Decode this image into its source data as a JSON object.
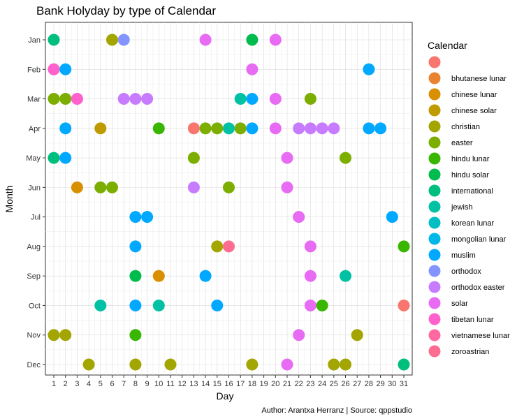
{
  "chart_data": {
    "type": "scatter",
    "title": "Bank Holyday by type of Calendar",
    "xlabel": "Day",
    "ylabel": "Month",
    "caption": "Author: Arantxa Herranz | Source: qppstudio",
    "x_ticks": [
      1,
      2,
      3,
      4,
      5,
      6,
      7,
      8,
      9,
      10,
      11,
      12,
      13,
      14,
      15,
      16,
      17,
      18,
      19,
      20,
      21,
      22,
      23,
      24,
      25,
      26,
      27,
      28,
      29,
      30,
      31
    ],
    "months": [
      "Jan",
      "Feb",
      "Mar",
      "Apr",
      "May",
      "Jun",
      "Jul",
      "Aug",
      "Sep",
      "Oct",
      "Nov",
      "Dec"
    ],
    "grid": true,
    "legend": {
      "title": "Calendar",
      "placement": "right",
      "entries": [
        {
          "name": "",
          "color": "#F8766D"
        },
        {
          "name": "bhutanese lunar",
          "color": "#EA8331"
        },
        {
          "name": "chinese lunar",
          "color": "#D89000"
        },
        {
          "name": "chinese solar",
          "color": "#C09B00"
        },
        {
          "name": "christian",
          "color": "#A3A500"
        },
        {
          "name": "easter",
          "color": "#7CAE00"
        },
        {
          "name": "hindu lunar",
          "color": "#39B600"
        },
        {
          "name": "hindu solar",
          "color": "#00BB4E"
        },
        {
          "name": "international",
          "color": "#00BF7D"
        },
        {
          "name": "jewish",
          "color": "#00C1A3"
        },
        {
          "name": "korean lunar",
          "color": "#00BFC4"
        },
        {
          "name": "mongolian lunar",
          "color": "#00B8E7"
        },
        {
          "name": "muslim",
          "color": "#00A9FF"
        },
        {
          "name": "orthodox",
          "color": "#8494FF"
        },
        {
          "name": "orthodox easter",
          "color": "#C77CFF"
        },
        {
          "name": "solar",
          "color": "#E76BF3"
        },
        {
          "name": "tibetan lunar",
          "color": "#FF61CC"
        },
        {
          "name": "vietnamese lunar",
          "color": "#FF68A1"
        },
        {
          "name": "zoroastrian",
          "color": "#FF6C91"
        }
      ]
    },
    "points": [
      {
        "day": 1,
        "month": "Jan",
        "calendar": "international"
      },
      {
        "day": 6,
        "month": "Jan",
        "calendar": "christian"
      },
      {
        "day": 7,
        "month": "Jan",
        "calendar": "orthodox"
      },
      {
        "day": 14,
        "month": "Jan",
        "calendar": "solar"
      },
      {
        "day": 18,
        "month": "Jan",
        "calendar": "hindu solar"
      },
      {
        "day": 20,
        "month": "Jan",
        "calendar": "solar"
      },
      {
        "day": 1,
        "month": "Feb",
        "calendar": "solar"
      },
      {
        "day": 1,
        "month": "Feb",
        "calendar": "tibetan lunar"
      },
      {
        "day": 2,
        "month": "Feb",
        "calendar": "muslim"
      },
      {
        "day": 18,
        "month": "Feb",
        "calendar": "solar"
      },
      {
        "day": 28,
        "month": "Feb",
        "calendar": "muslim"
      },
      {
        "day": 1,
        "month": "Mar",
        "calendar": "easter"
      },
      {
        "day": 2,
        "month": "Mar",
        "calendar": "easter"
      },
      {
        "day": 3,
        "month": "Mar",
        "calendar": "solar"
      },
      {
        "day": 3,
        "month": "Mar",
        "calendar": "tibetan lunar"
      },
      {
        "day": 7,
        "month": "Mar",
        "calendar": "orthodox easter"
      },
      {
        "day": 8,
        "month": "Mar",
        "calendar": "orthodox easter"
      },
      {
        "day": 9,
        "month": "Mar",
        "calendar": "orthodox easter"
      },
      {
        "day": 17,
        "month": "Mar",
        "calendar": "jewish"
      },
      {
        "day": 18,
        "month": "Mar",
        "calendar": "muslim"
      },
      {
        "day": 20,
        "month": "Mar",
        "calendar": "solar"
      },
      {
        "day": 23,
        "month": "Mar",
        "calendar": "easter"
      },
      {
        "day": 2,
        "month": "Apr",
        "calendar": "muslim"
      },
      {
        "day": 5,
        "month": "Apr",
        "calendar": "chinese solar"
      },
      {
        "day": 10,
        "month": "Apr",
        "calendar": "hindu lunar"
      },
      {
        "day": 13,
        "month": "Apr",
        "calendar": ""
      },
      {
        "day": 14,
        "month": "Apr",
        "calendar": "easter"
      },
      {
        "day": 15,
        "month": "Apr",
        "calendar": "easter"
      },
      {
        "day": 16,
        "month": "Apr",
        "calendar": "jewish"
      },
      {
        "day": 17,
        "month": "Apr",
        "calendar": "easter"
      },
      {
        "day": 18,
        "month": "Apr",
        "calendar": "muslim"
      },
      {
        "day": 20,
        "month": "Apr",
        "calendar": "solar"
      },
      {
        "day": 22,
        "month": "Apr",
        "calendar": "orthodox easter"
      },
      {
        "day": 23,
        "month": "Apr",
        "calendar": "orthodox easter"
      },
      {
        "day": 24,
        "month": "Apr",
        "calendar": "orthodox easter"
      },
      {
        "day": 25,
        "month": "Apr",
        "calendar": "orthodox easter"
      },
      {
        "day": 28,
        "month": "Apr",
        "calendar": "muslim"
      },
      {
        "day": 29,
        "month": "Apr",
        "calendar": "muslim"
      },
      {
        "day": 1,
        "month": "May",
        "calendar": "international"
      },
      {
        "day": 2,
        "month": "May",
        "calendar": "muslim"
      },
      {
        "day": 13,
        "month": "May",
        "calendar": "easter"
      },
      {
        "day": 21,
        "month": "May",
        "calendar": "solar"
      },
      {
        "day": 26,
        "month": "May",
        "calendar": "easter"
      },
      {
        "day": 3,
        "month": "Jun",
        "calendar": "chinese lunar"
      },
      {
        "day": 5,
        "month": "Jun",
        "calendar": "easter"
      },
      {
        "day": 6,
        "month": "Jun",
        "calendar": "easter"
      },
      {
        "day": 13,
        "month": "Jun",
        "calendar": "orthodox easter"
      },
      {
        "day": 16,
        "month": "Jun",
        "calendar": "easter"
      },
      {
        "day": 21,
        "month": "Jun",
        "calendar": "solar"
      },
      {
        "day": 8,
        "month": "Jul",
        "calendar": "muslim"
      },
      {
        "day": 9,
        "month": "Jul",
        "calendar": "muslim"
      },
      {
        "day": 22,
        "month": "Jul",
        "calendar": "solar"
      },
      {
        "day": 30,
        "month": "Jul",
        "calendar": "muslim"
      },
      {
        "day": 8,
        "month": "Aug",
        "calendar": "muslim"
      },
      {
        "day": 15,
        "month": "Aug",
        "calendar": "christian"
      },
      {
        "day": 16,
        "month": "Aug",
        "calendar": "zoroastrian"
      },
      {
        "day": 23,
        "month": "Aug",
        "calendar": "solar"
      },
      {
        "day": 31,
        "month": "Aug",
        "calendar": "hindu lunar"
      },
      {
        "day": 8,
        "month": "Sep",
        "calendar": "hindu solar"
      },
      {
        "day": 10,
        "month": "Sep",
        "calendar": "chinese lunar"
      },
      {
        "day": 14,
        "month": "Sep",
        "calendar": "muslim"
      },
      {
        "day": 23,
        "month": "Sep",
        "calendar": "solar"
      },
      {
        "day": 26,
        "month": "Sep",
        "calendar": "jewish"
      },
      {
        "day": 5,
        "month": "Oct",
        "calendar": "jewish"
      },
      {
        "day": 8,
        "month": "Oct",
        "calendar": "muslim"
      },
      {
        "day": 10,
        "month": "Oct",
        "calendar": "jewish"
      },
      {
        "day": 15,
        "month": "Oct",
        "calendar": "muslim"
      },
      {
        "day": 23,
        "month": "Oct",
        "calendar": "solar"
      },
      {
        "day": 24,
        "month": "Oct",
        "calendar": "hindu lunar"
      },
      {
        "day": 31,
        "month": "Oct",
        "calendar": ""
      },
      {
        "day": 1,
        "month": "Nov",
        "calendar": "christian"
      },
      {
        "day": 2,
        "month": "Nov",
        "calendar": "christian"
      },
      {
        "day": 8,
        "month": "Nov",
        "calendar": "hindu lunar"
      },
      {
        "day": 22,
        "month": "Nov",
        "calendar": "solar"
      },
      {
        "day": 27,
        "month": "Nov",
        "calendar": "christian"
      },
      {
        "day": 4,
        "month": "Dec",
        "calendar": "christian"
      },
      {
        "day": 8,
        "month": "Dec",
        "calendar": "christian"
      },
      {
        "day": 11,
        "month": "Dec",
        "calendar": "christian"
      },
      {
        "day": 18,
        "month": "Dec",
        "calendar": "christian"
      },
      {
        "day": 21,
        "month": "Dec",
        "calendar": "solar"
      },
      {
        "day": 25,
        "month": "Dec",
        "calendar": "christian"
      },
      {
        "day": 26,
        "month": "Dec",
        "calendar": "christian"
      },
      {
        "day": 31,
        "month": "Dec",
        "calendar": "international"
      }
    ]
  }
}
